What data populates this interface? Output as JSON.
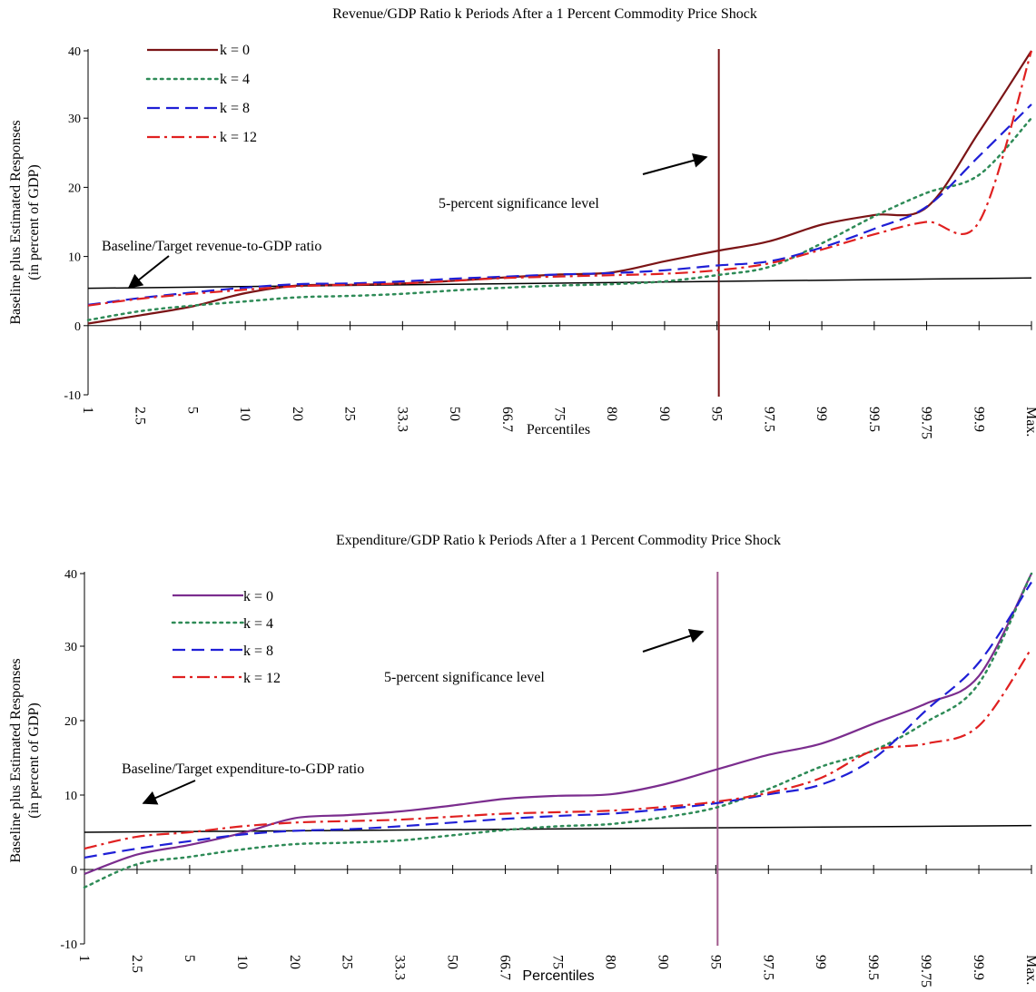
{
  "chart_data": [
    {
      "type": "line",
      "title": "Revenue/GDP Ratio k Periods After a 1 Percent Commodity Price Shock",
      "xlabel": "Percentiles",
      "ylabel_lines": [
        "Baseline plus Estimated Responses",
        "(in percent of GDP)"
      ],
      "categories": [
        "1",
        "2.5",
        "5",
        "10",
        "20",
        "25",
        "33.3",
        "50",
        "66.7",
        "75",
        "80",
        "90",
        "95",
        "97.5",
        "99",
        "99.5",
        "99.75",
        "99.9",
        "Max."
      ],
      "ylim": [
        -10,
        40
      ],
      "yticks": [
        "-10",
        "0",
        "10",
        "20",
        "30",
        "40"
      ],
      "series": [
        {
          "name": "k = 0",
          "color": "#7b1416",
          "dash": "solid",
          "values": [
            0.3,
            1.5,
            2.8,
            4.7,
            5.8,
            5.9,
            6.1,
            6.5,
            7.0,
            7.4,
            7.7,
            9.3,
            10.8,
            12.2,
            14.6,
            16.0,
            17.1,
            28.0,
            40.0
          ]
        },
        {
          "name": "k = 4",
          "color": "#2e8b57",
          "dash": "dotted",
          "values": [
            0.8,
            2.1,
            2.9,
            3.5,
            4.1,
            4.3,
            4.6,
            5.1,
            5.5,
            5.8,
            6.0,
            6.4,
            7.3,
            8.5,
            11.9,
            15.8,
            19.2,
            21.8,
            30.0
          ]
        },
        {
          "name": "k = 8",
          "color": "#1f1fd6",
          "dash": "dashed",
          "values": [
            3.0,
            4.0,
            4.8,
            5.5,
            6.0,
            6.1,
            6.4,
            6.8,
            7.1,
            7.4,
            7.6,
            8.0,
            8.7,
            9.3,
            11.3,
            14.0,
            17.2,
            24.5,
            32.0
          ]
        },
        {
          "name": "k = 12",
          "color": "#e02020",
          "dash": "dashdot",
          "values": [
            2.9,
            3.9,
            4.6,
            5.2,
            5.7,
            5.9,
            6.1,
            6.5,
            6.9,
            7.1,
            7.3,
            7.5,
            8.0,
            9.0,
            11.0,
            13.2,
            15.0,
            15.0,
            40.0
          ]
        }
      ],
      "baseline": {
        "label": "Baseline/Target revenue-to-GDP ratio",
        "values_start": 5.4,
        "values_end": 6.9
      },
      "significance": {
        "label": "5-percent significance level",
        "category": "95",
        "color": "#7b1416"
      },
      "legend": "top-left"
    },
    {
      "type": "line",
      "title": "Expenditure/GDP Ratio k Periods After a 1 Percent Commodity Price Shock",
      "xlabel": "Percentiles",
      "ylabel_lines": [
        "Baseline plus Estimated Responses",
        "(in percent of GDP)"
      ],
      "categories": [
        "1",
        "2.5",
        "5",
        "10",
        "20",
        "25",
        "33.3",
        "50",
        "66.7",
        "75",
        "80",
        "90",
        "95",
        "97.5",
        "99",
        "99.5",
        "99.75",
        "99.9",
        "Max."
      ],
      "ylim": [
        -10,
        40
      ],
      "yticks": [
        "-10",
        "0",
        "10",
        "20",
        "30",
        "40"
      ],
      "series": [
        {
          "name": "k = 0",
          "color": "#7b2d8e",
          "dash": "solid",
          "values": [
            -0.6,
            2.0,
            3.3,
            4.9,
            6.9,
            7.3,
            7.8,
            8.6,
            9.5,
            9.9,
            10.1,
            11.4,
            13.4,
            15.4,
            16.9,
            19.6,
            22.3,
            26.0,
            40.0
          ]
        },
        {
          "name": "k = 4",
          "color": "#2e8b57",
          "dash": "dotted",
          "values": [
            -2.4,
            0.7,
            1.7,
            2.7,
            3.4,
            3.6,
            3.9,
            4.6,
            5.3,
            5.8,
            6.1,
            7.0,
            8.3,
            10.8,
            13.8,
            16.0,
            19.8,
            25.0,
            40.0
          ]
        },
        {
          "name": "k = 8",
          "color": "#1f1fd6",
          "dash": "dashed",
          "values": [
            1.6,
            2.8,
            3.8,
            4.7,
            5.2,
            5.4,
            5.8,
            6.3,
            6.8,
            7.2,
            7.5,
            8.1,
            8.9,
            10.1,
            11.4,
            14.9,
            21.4,
            27.8,
            38.6
          ]
        },
        {
          "name": "k = 12",
          "color": "#e02020",
          "dash": "dashdot",
          "values": [
            2.8,
            4.4,
            5.0,
            5.8,
            6.3,
            6.5,
            6.7,
            7.1,
            7.5,
            7.7,
            7.9,
            8.4,
            9.1,
            10.3,
            12.3,
            16.0,
            16.9,
            19.3,
            29.7
          ]
        }
      ],
      "baseline": {
        "label": "Baseline/Target expenditure-to-GDP ratio",
        "values_start": 5.0,
        "values_end": 5.9
      },
      "significance": {
        "label": "5-percent significance level",
        "category": "95",
        "color": "#a05a8c"
      },
      "legend": "top-left"
    }
  ]
}
